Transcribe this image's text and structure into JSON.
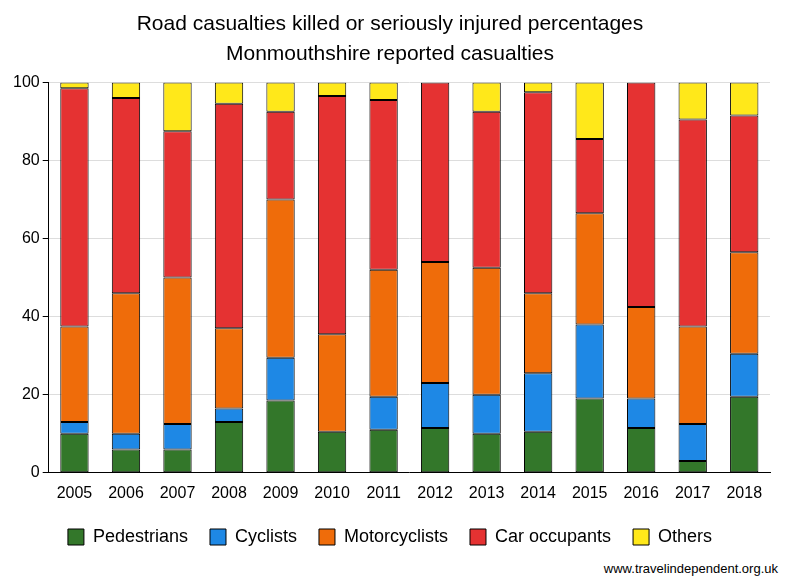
{
  "chart_data": {
    "type": "bar",
    "stacked": true,
    "title": "Road casualties killed or seriously injured percentages",
    "subtitle": "Monmouthshire reported casualties",
    "source": "www.travelindependent.org.uk",
    "categories": [
      "2005",
      "2006",
      "2007",
      "2008",
      "2009",
      "2010",
      "2011",
      "2012",
      "2013",
      "2014",
      "2015",
      "2016",
      "2017",
      "2018"
    ],
    "series": [
      {
        "name": "Pedestrians",
        "color": "#33772a",
        "values": [
          10,
          6,
          6,
          13,
          18.5,
          10.5,
          11,
          11.5,
          10,
          10.5,
          19,
          11.5,
          3,
          19.5
        ]
      },
      {
        "name": "Cyclists",
        "color": "#1e88e5",
        "values": [
          3,
          4,
          6.5,
          3.5,
          11,
          0,
          8.5,
          11.5,
          10,
          15,
          19,
          7.5,
          9.5,
          11
        ]
      },
      {
        "name": "Motorcyclists",
        "color": "#ef6c0a",
        "values": [
          24.5,
          36,
          37.5,
          20.5,
          40.5,
          25,
          32.5,
          31,
          32.5,
          20.5,
          28.5,
          23.5,
          25,
          26
        ]
      },
      {
        "name": "Car occupants",
        "color": "#e53232",
        "values": [
          61,
          50,
          37.5,
          57.5,
          22.5,
          61,
          43.5,
          46,
          40,
          51.5,
          19,
          57.5,
          53,
          35
        ]
      },
      {
        "name": "Others",
        "color": "#ffe81a",
        "values": [
          1.5,
          4,
          12.5,
          5.5,
          7.5,
          3.5,
          4.5,
          0,
          7.5,
          2.5,
          14.5,
          0,
          9.5,
          8.5
        ]
      }
    ],
    "ylim": [
      0,
      100
    ],
    "yticks": [
      0,
      20,
      40,
      60,
      80,
      100
    ],
    "grid": true,
    "legend": "bottom"
  }
}
